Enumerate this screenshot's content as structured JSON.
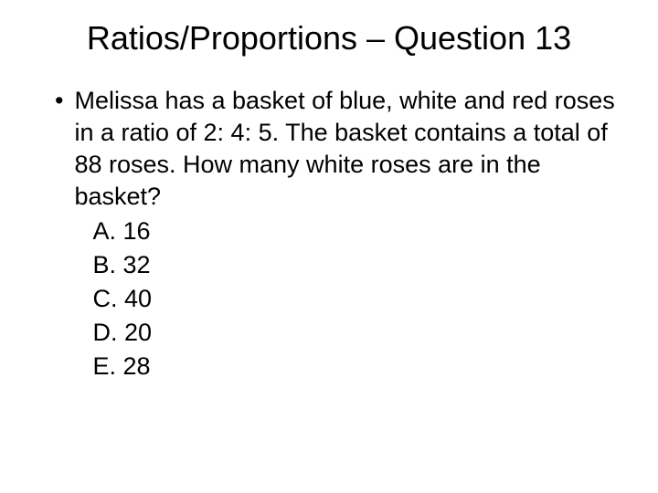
{
  "title": "Ratios/Proportions – Question 13",
  "question": "Melissa has a basket of blue, white and red roses in a ratio of 2: 4: 5. The basket contains a total of 88 roses. How many white roses are in the basket?",
  "choices": {
    "a": "A. 16",
    "b": "B. 32",
    "c": "C. 40",
    "d": "D. 20",
    "e": "E. 28"
  },
  "bullet_char": "•",
  "colors": {
    "background": "#ffffff",
    "text": "#000000"
  },
  "typography": {
    "title_fontsize": 36,
    "body_fontsize": 27,
    "font_family": "Arial"
  }
}
